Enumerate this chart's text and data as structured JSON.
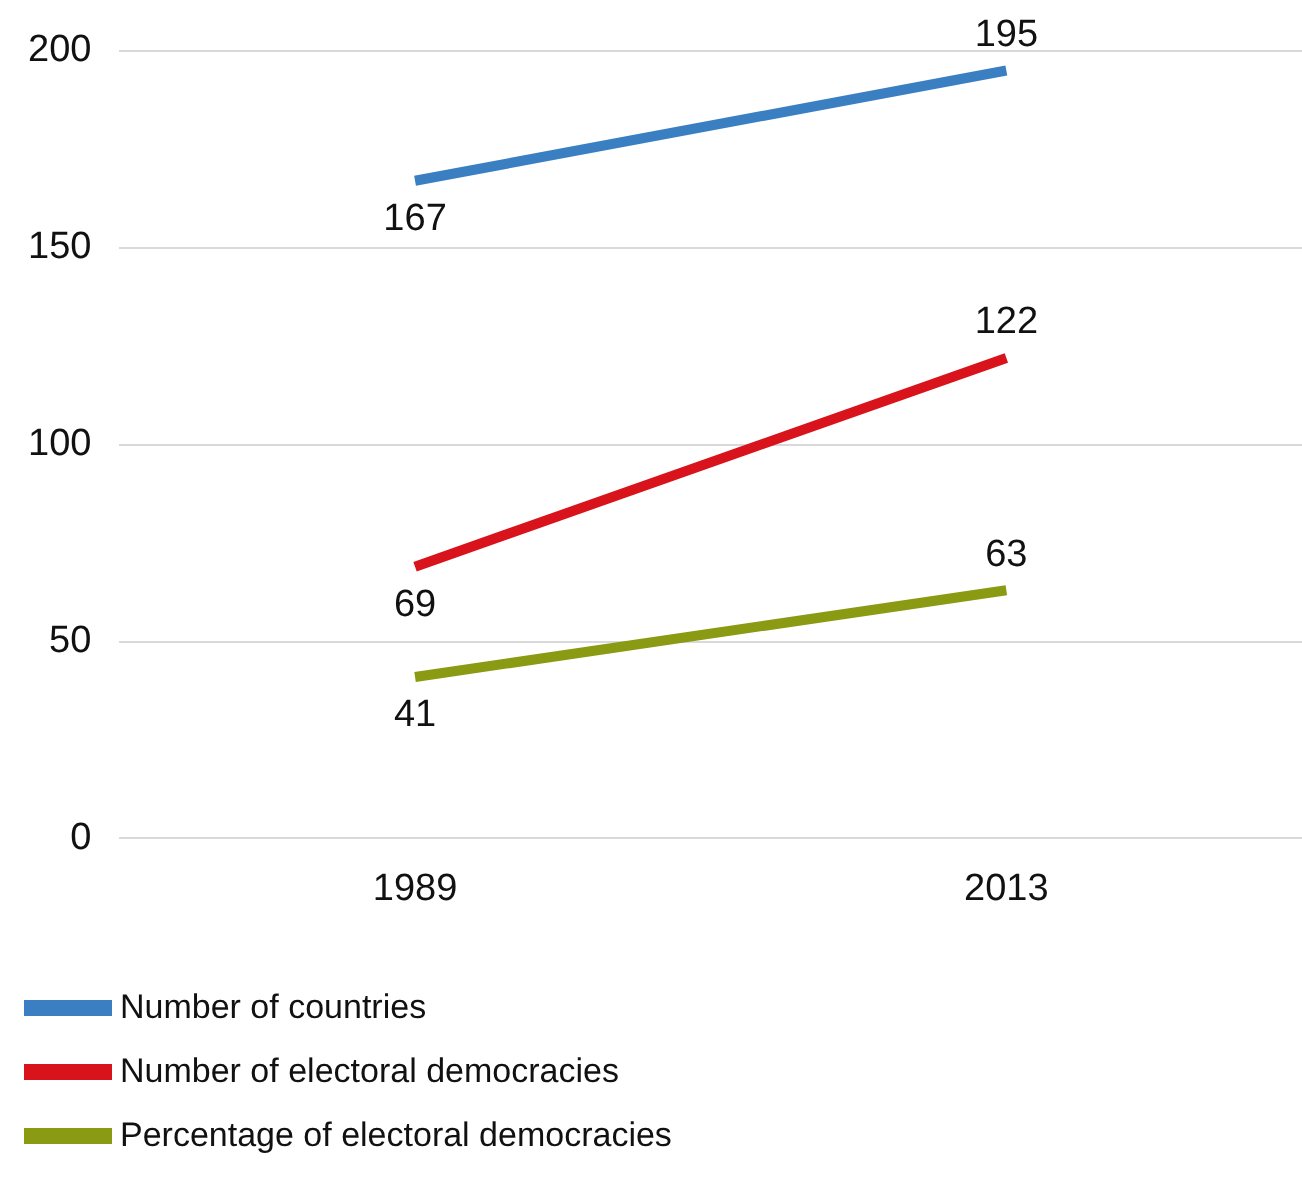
{
  "chart_data": {
    "type": "line",
    "categories": [
      "1989",
      "2013"
    ],
    "series": [
      {
        "name": "Number of countries",
        "color": "#3a7fc1",
        "values": [
          167,
          195
        ]
      },
      {
        "name": "Number of electoral democracies",
        "color": "#d9131b",
        "values": [
          69,
          122
        ]
      },
      {
        "name": "Percentage of electoral democracies",
        "color": "#8a9a12",
        "values": [
          41,
          63
        ]
      }
    ],
    "ylim": [
      0,
      200
    ],
    "yticks": [
      0,
      50,
      100,
      150,
      200
    ],
    "grid": "y",
    "legend": "bottom",
    "data_labels": true,
    "marker": "none",
    "line_style": "solid"
  }
}
